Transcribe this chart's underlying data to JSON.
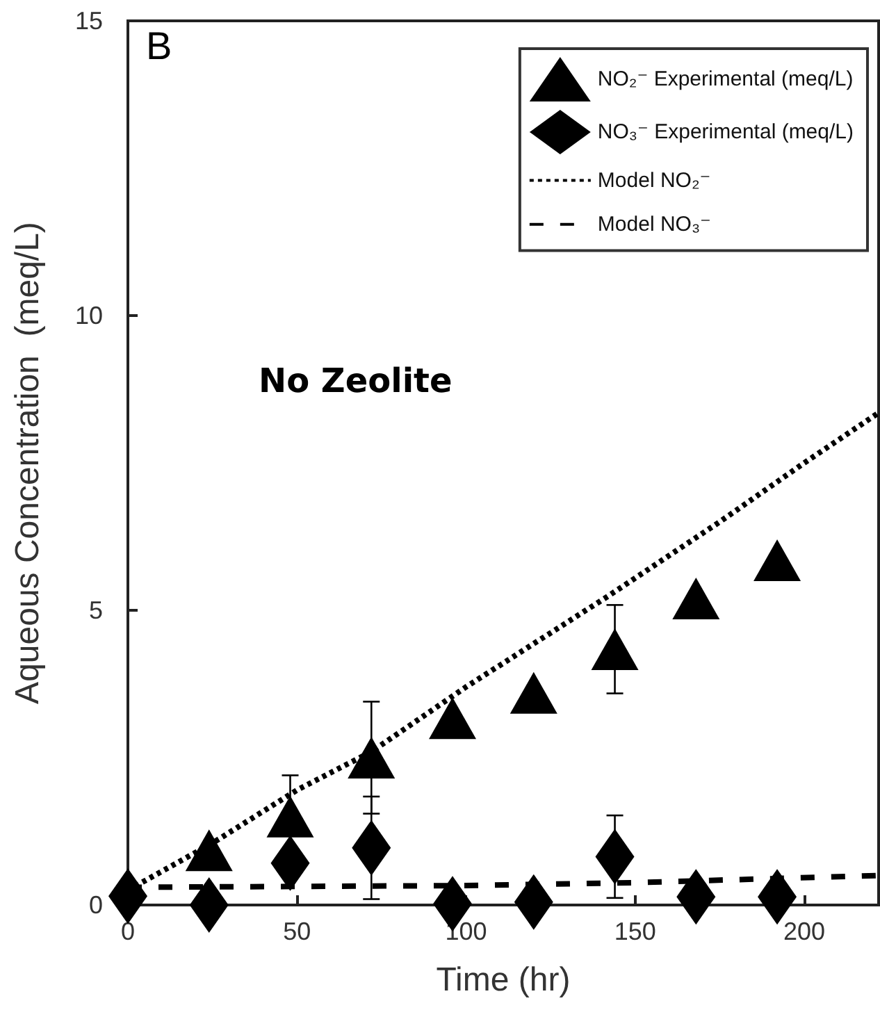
{
  "chart_data": {
    "type": "scatter",
    "xlabel": "Time (hr)",
    "ylabel": "Aqueous Concentration  (meq/L)",
    "xlim": [
      0,
      222
    ],
    "xticks": [
      0,
      50,
      100,
      150,
      200
    ],
    "ylim": [
      0,
      15
    ],
    "yticks": [
      0,
      5,
      10,
      15
    ],
    "grid": false,
    "legend": "top right",
    "annotations": [
      "B",
      "No Zeolite"
    ],
    "series": [
      {
        "name": "NO₂⁻ Experimental (meq/L)",
        "marker": "triangle",
        "color": "#000000",
        "x": [
          24,
          48,
          72,
          96,
          120,
          144,
          168,
          192
        ],
        "values": [
          0.93,
          1.5,
          2.5,
          3.17,
          3.6,
          4.34,
          5.2,
          5.85
        ],
        "errors": [
          null,
          0.7,
          0.95,
          null,
          null,
          0.75,
          null,
          null
        ]
      },
      {
        "name": "NO₃⁻ Experimental (meq/L)",
        "marker": "diamond",
        "color": "#000000",
        "x": [
          0,
          24,
          48,
          72,
          96,
          120,
          144,
          168,
          192
        ],
        "values": [
          0.15,
          0.0,
          0.71,
          0.97,
          0.02,
          0.05,
          0.82,
          0.14,
          0.14
        ],
        "errors": [
          null,
          null,
          null,
          0.87,
          null,
          null,
          0.7,
          null,
          null
        ]
      },
      {
        "name": "Model NO₂⁻",
        "type": "line",
        "line_style": "dotted",
        "color": "#000000",
        "x": [
          0,
          25,
          50,
          72,
          100,
          142,
          175,
          200,
          222
        ],
        "values": [
          0.25,
          1.05,
          1.95,
          2.6,
          3.7,
          5.24,
          6.5,
          7.5,
          8.35
        ]
      },
      {
        "name": "Model NO₃⁻",
        "type": "line",
        "line_style": "dashed",
        "color": "#000000",
        "x": [
          0,
          100,
          150,
          222
        ],
        "values": [
          0.3,
          0.33,
          0.38,
          0.5
        ]
      }
    ]
  }
}
